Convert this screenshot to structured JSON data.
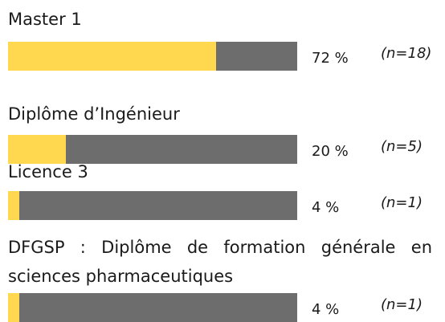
{
  "chart_data": {
    "type": "bar",
    "orientation": "horizontal",
    "categories": [
      "Master 1",
      "Diplôme d’Ingénieur",
      "Licence 3",
      "DFGSP : Diplôme de formation générale en sciences pharmaceutiques"
    ],
    "values": [
      72,
      20,
      4,
      4
    ],
    "value_labels": [
      "72 %",
      "20 %",
      "4 %",
      "4 %"
    ],
    "counts": [
      18,
      5,
      1,
      1
    ],
    "count_labels": [
      "(n=18)",
      "(n=5)",
      "(n=1)",
      "(n=1)"
    ],
    "xlim": [
      0,
      100
    ],
    "color": "#ffd84f",
    "track_color": "#6d6d6d"
  }
}
